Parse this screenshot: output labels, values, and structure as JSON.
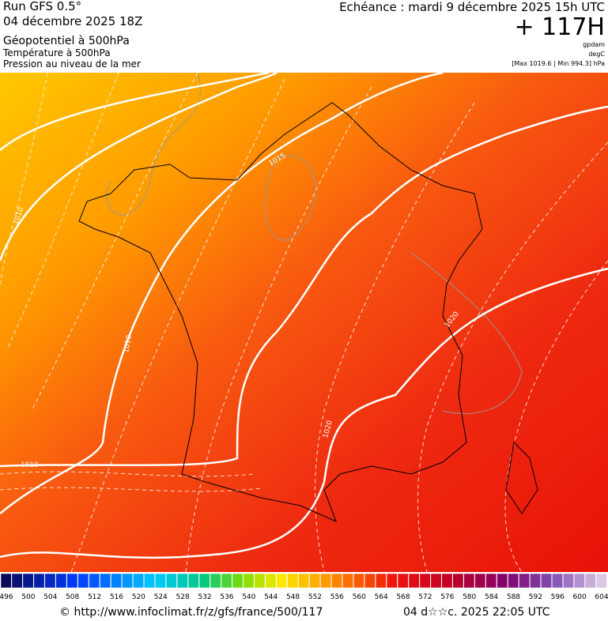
{
  "header": {
    "run": "Run GFS 0.5°",
    "date": "04 décembre 2025 18Z",
    "line1": "Géopotentiel à 500hPa",
    "line2": "Température à 500hPa",
    "line3": "Pression au niveau de la mer",
    "valid": "Echéance : mardi 9 décembre 2025 15h UTC",
    "lead": "+ 117H",
    "unit1": "gpdam",
    "unit2": "degC",
    "range": "[Max 1019.6 | Min 994.3] hPa"
  },
  "map": {
    "isobar_labels": [
      "1010",
      "1010",
      "1010",
      "1015",
      "1020",
      "1020"
    ]
  },
  "colorbar": {
    "labels": [
      "496",
      "500",
      "504",
      "508",
      "512",
      "516",
      "520",
      "524",
      "528",
      "532",
      "536",
      "540",
      "544",
      "548",
      "552",
      "556",
      "560",
      "564",
      "568",
      "572",
      "576",
      "580",
      "584",
      "588",
      "592",
      "596",
      "600",
      "604"
    ]
  },
  "footer": {
    "source": "© http://www.infoclimat.fr/z/gfs/france/500/117",
    "generated": "04 d☆☆c. 2025 22:05 UTC"
  }
}
